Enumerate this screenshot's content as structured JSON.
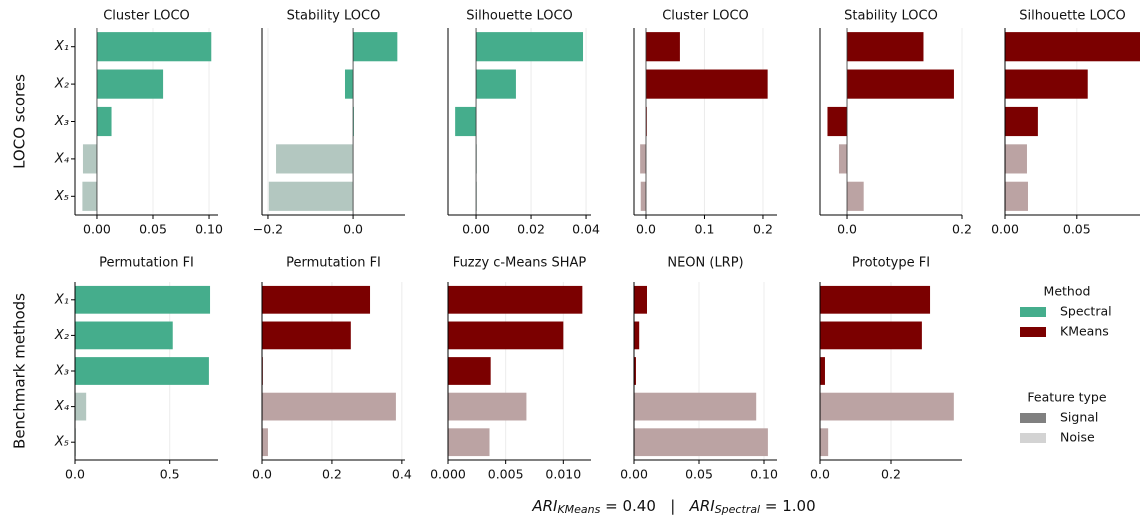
{
  "chart_data": [
    {
      "type": "bar",
      "title": "Cluster LOCO",
      "ylabel": "LOCO scores",
      "categories": [
        "X₁",
        "X₂",
        "X₃",
        "X₄",
        "X₅"
      ],
      "values": [
        0.102,
        0.059,
        0.013,
        -0.0125,
        -0.013
      ],
      "colors": [
        "#45ad8c",
        "#45ad8c",
        "#45ad8c",
        "#b3c7c0",
        "#b3c7c0"
      ],
      "xlim": [
        -0.0196,
        0.108
      ],
      "xticks": [
        {
          "value": 0,
          "label": "0.00"
        },
        0.05,
        {
          "value": 0.1,
          "label": "0.10"
        }
      ],
      "grid": true,
      "zero_line": true
    },
    {
      "type": "bar",
      "title": "Stability LOCO",
      "values": [
        0.104,
        -0.019,
        0.001,
        -0.181,
        -0.198
      ],
      "colors": [
        "#45ad8c",
        "#45ad8c",
        "#45ad8c",
        "#b3c7c0",
        "#b3c7c0"
      ],
      "xlim": [
        -0.214,
        0.122
      ],
      "xticks": [
        {
          "value": -0.2,
          "label": "−0.2"
        },
        {
          "value": 0,
          "label": "0.0"
        }
      ],
      "grid": true,
      "zero_line": true
    },
    {
      "type": "bar",
      "title": "Silhouette LOCO",
      "values": [
        0.0389,
        0.0145,
        -0.0076,
        0,
        0
      ],
      "colors": [
        "#45ad8c",
        "#45ad8c",
        "#45ad8c",
        "#b3c7c0",
        "#b3c7c0"
      ],
      "xlim": [
        -0.0102,
        0.0418
      ],
      "xticks": [
        {
          "value": 0,
          "label": "0.00"
        },
        0.02,
        0.04
      ],
      "grid": true,
      "zero_line": true
    },
    {
      "type": "bar",
      "title": "Cluster LOCO",
      "values": [
        0.058,
        0.208,
        0.001,
        -0.01,
        -0.009
      ],
      "colors": [
        "#7b0000",
        "#7b0000",
        "#7b0000",
        "#bba3a3",
        "#bba3a3"
      ],
      "xlim": [
        -0.0205,
        0.224
      ],
      "xticks": [
        {
          "value": 0,
          "label": "0.0"
        },
        0.1,
        0.2
      ],
      "grid": true,
      "zero_line": true
    },
    {
      "type": "bar",
      "title": "Stability LOCO",
      "values": [
        0.133,
        0.186,
        -0.034,
        -0.014,
        0.029
      ],
      "colors": [
        "#7b0000",
        "#7b0000",
        "#7b0000",
        "#bba3a3",
        "#bba3a3"
      ],
      "xlim": [
        -0.047,
        0.2
      ],
      "xticks": [
        {
          "value": 0,
          "label": "0.0"
        },
        0.2
      ],
      "grid": true,
      "zero_line": true
    },
    {
      "type": "bar",
      "title": "Silhouette LOCO",
      "values": [
        0.094,
        0.0576,
        0.0229,
        0.0153,
        0.016
      ],
      "colors": [
        "#7b0000",
        "#7b0000",
        "#7b0000",
        "#bba3a3",
        "#bba3a3"
      ],
      "xlim": [
        0,
        0.094
      ],
      "xticks": [
        {
          "value": 0,
          "label": "0.00"
        },
        0.05
      ],
      "grid": true,
      "zero_line": true
    },
    {
      "type": "bar",
      "title": "Permutation FI",
      "ylabel": "Benchmark methods",
      "categories": [
        "X₁",
        "X₂",
        "X₃",
        "X₄",
        "X₅"
      ],
      "values": [
        0.713,
        0.516,
        0.707,
        0.059,
        0
      ],
      "colors": [
        "#45ad8c",
        "#45ad8c",
        "#45ad8c",
        "#b3c7c0",
        "#b3c7c0"
      ],
      "xlim": [
        0,
        0.755
      ],
      "xticks": [
        {
          "value": 0,
          "label": "0.0"
        },
        0.5
      ],
      "grid": true,
      "zero_line": false
    },
    {
      "type": "bar",
      "title": "Permutation FI",
      "values": [
        0.309,
        0.254,
        0.002,
        0.383,
        0.017
      ],
      "colors": [
        "#7b0000",
        "#7b0000",
        "#7b0000",
        "#bba3a3",
        "#bba3a3"
      ],
      "xlim": [
        0,
        0.409
      ],
      "xticks": [
        {
          "value": 0,
          "label": "0.0"
        },
        0.2,
        0.4
      ],
      "grid": true,
      "zero_line": false
    },
    {
      "type": "bar",
      "title": "Fuzzy c-Means SHAP",
      "values": [
        0.01165,
        0.01,
        0.0037,
        0.0068,
        0.0036
      ],
      "colors": [
        "#7b0000",
        "#7b0000",
        "#7b0000",
        "#bba3a3",
        "#bba3a3"
      ],
      "xlim": [
        0,
        0.0124
      ],
      "xticks": [
        {
          "value": 0,
          "label": "0.000"
        },
        {
          "value": 0.005,
          "label": "0.005"
        },
        {
          "value": 0.01,
          "label": "0.010"
        }
      ],
      "grid": true,
      "zero_line": false
    },
    {
      "type": "bar",
      "title": "NEON (LRP)",
      "values": [
        0.01,
        0.004,
        0.0015,
        0.094,
        0.103
      ],
      "colors": [
        "#7b0000",
        "#7b0000",
        "#7b0000",
        "#bba3a3",
        "#bba3a3"
      ],
      "xlim": [
        0,
        0.11
      ],
      "xticks": [
        {
          "value": 0,
          "label": "0.00"
        },
        0.05,
        {
          "value": 0.1,
          "label": "0.10"
        }
      ],
      "grid": true,
      "zero_line": false
    },
    {
      "type": "bar",
      "title": "Prototype FI",
      "values": [
        0.31,
        0.287,
        0.014,
        0.377,
        0.023
      ],
      "colors": [
        "#7b0000",
        "#7b0000",
        "#7b0000",
        "#bba3a3",
        "#bba3a3"
      ],
      "xlim": [
        0,
        0.4
      ],
      "xticks": [
        {
          "value": 0,
          "label": "0.0"
        },
        0.2
      ],
      "grid": true,
      "zero_line": false
    }
  ],
  "legend": {
    "method": {
      "title": "Method",
      "items": [
        {
          "name": "Spectral",
          "color": "#45ad8c"
        },
        {
          "name": "KMeans",
          "color": "#7b0000"
        }
      ]
    },
    "feature_type": {
      "title": "Feature type",
      "items": [
        {
          "name": "Signal",
          "color": "#808080"
        },
        {
          "name": "Noise",
          "color": "#d3d3d3"
        }
      ]
    }
  },
  "footer": {
    "parts": [
      {
        "symbol": "ARI",
        "subscript": "KMeans",
        "value": "= 0.40"
      },
      {
        "symbol": "ARI",
        "subscript": "Spectral",
        "value": "= 1.00"
      }
    ],
    "separator": "|"
  }
}
